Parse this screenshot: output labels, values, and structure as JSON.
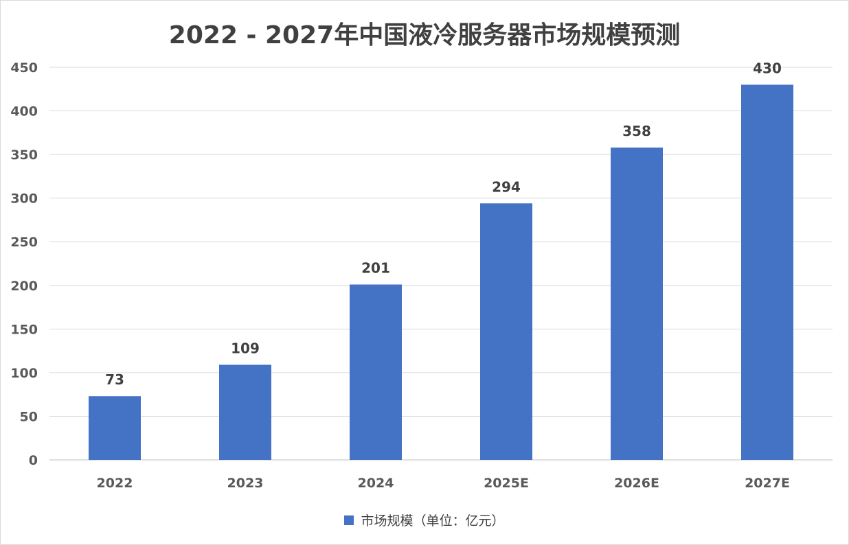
{
  "chart_data": {
    "type": "bar",
    "title": "2022 - 2027年中国液冷服务器市场规模预测",
    "categories": [
      "2022",
      "2023",
      "2024",
      "2025E",
      "2026E",
      "2027E"
    ],
    "series": [
      {
        "name": "市场规模（单位：亿元）",
        "values": [
          73,
          109,
          201,
          294,
          358,
          430
        ],
        "color": "#4472c4"
      }
    ],
    "ylim": [
      0,
      450
    ],
    "yticks": [
      0,
      50,
      100,
      150,
      200,
      250,
      300,
      350,
      400,
      450
    ],
    "grid": true,
    "legend_position": "bottom",
    "data_labels": true
  }
}
